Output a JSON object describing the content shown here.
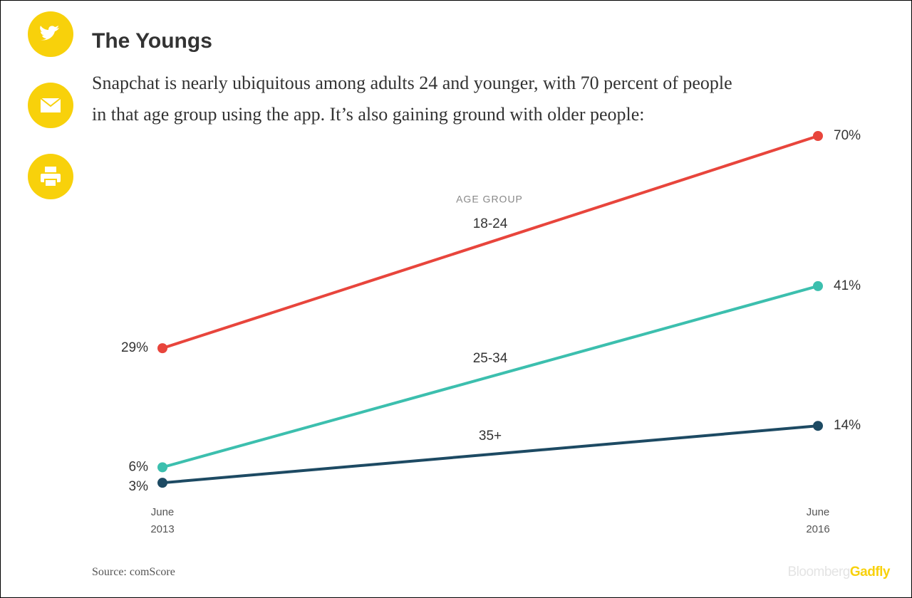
{
  "chart_data": {
    "type": "line",
    "title": "The Youngs",
    "subtitle": "Snapchat is nearly ubiquitous among adults 24 and younger, with 70 percent of people in that age group using the app. It’s also gaining ground with older people:",
    "legend_title": "AGE GROUP",
    "categories": [
      "June 2013",
      "June 2016"
    ],
    "series": [
      {
        "name": "18-24",
        "color": "#e8453c",
        "values": [
          29,
          70
        ],
        "value_labels": [
          "29%",
          "70%"
        ]
      },
      {
        "name": "25-34",
        "color": "#3cbfae",
        "values": [
          6,
          41
        ],
        "value_labels": [
          "6%",
          "41%"
        ]
      },
      {
        "name": "35+",
        "color": "#1d4a63",
        "values": [
          3,
          14
        ],
        "value_labels": [
          "3%",
          "14%"
        ]
      }
    ],
    "source": "Source: comScore",
    "brand": {
      "part1": "Bloomberg",
      "part2": "Gadfly"
    }
  }
}
